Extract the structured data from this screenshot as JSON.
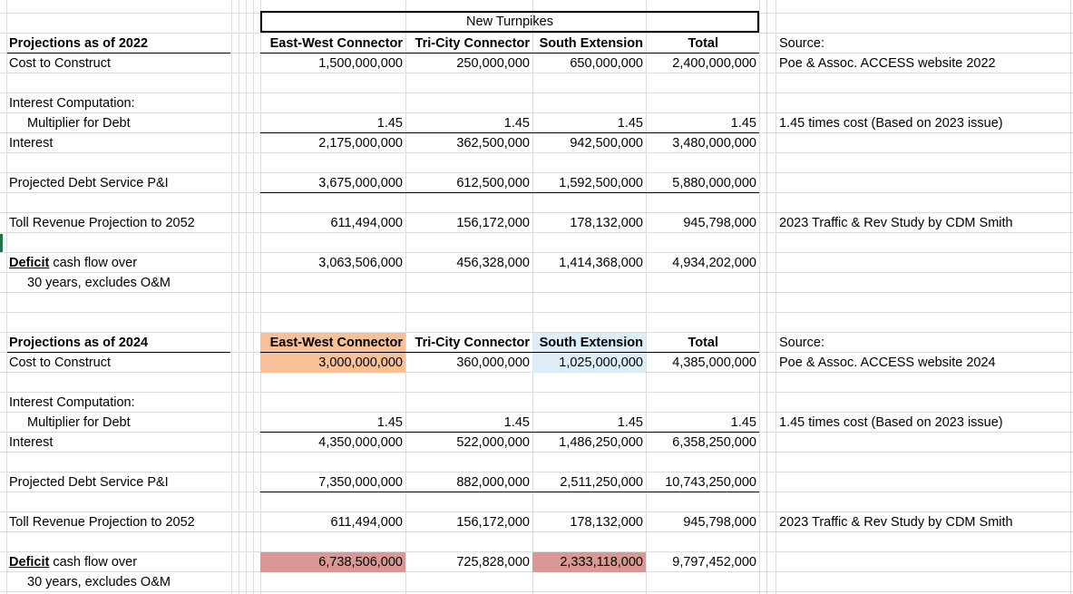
{
  "sheet": {
    "header_title": "New Turnpikes",
    "columns": [
      "East-West Connector",
      "Tri-City Connector",
      "South Extension",
      "Total"
    ],
    "sections": [
      {
        "heading": "Projections as of 2022",
        "cost_label": "Cost to Construct",
        "cost": [
          "1,500,000,000",
          "250,000,000",
          "650,000,000",
          "2,400,000,000"
        ],
        "source_label": "Source:",
        "source": "Poe & Assoc. ACCESS website 2022",
        "interest_computation_label": "Interest Computation:",
        "multiplier_label": "Multiplier for Debt",
        "multiplier": [
          "1.45",
          "1.45",
          "1.45",
          "1.45"
        ],
        "multiplier_note": "1.45 times cost (Based on 2023 issue)",
        "interest_label": "Interest",
        "interest": [
          "2,175,000,000",
          "362,500,000",
          "942,500,000",
          "3,480,000,000"
        ],
        "debt_service_label": "Projected Debt Service P&I",
        "debt_service": [
          "3,675,000,000",
          "612,500,000",
          "1,592,500,000",
          "5,880,000,000"
        ],
        "toll_label": "Toll Revenue Projection to 2052",
        "toll": [
          "611,494,000",
          "156,172,000",
          "178,132,000",
          "945,798,000"
        ],
        "toll_note": "2023 Traffic & Rev Study by CDM Smith",
        "deficit_word": "Deficit",
        "deficit_label_rest": " cash flow over",
        "deficit_label_line2": "30 years, excludes O&M",
        "deficit": [
          "3,063,506,000",
          "456,328,000",
          "1,414,368,000",
          "4,934,202,000"
        ]
      },
      {
        "heading": "Projections as of 2024",
        "cost_label": "Cost to Construct",
        "cost": [
          "3,000,000,000",
          "360,000,000",
          "1,025,000,000",
          "4,385,000,000"
        ],
        "source_label": "Source:",
        "source": "Poe & Assoc. ACCESS website 2024",
        "interest_computation_label": "Interest Computation:",
        "multiplier_label": "Multiplier for Debt",
        "multiplier": [
          "1.45",
          "1.45",
          "1.45",
          "1.45"
        ],
        "multiplier_note": "1.45 times cost (Based on 2023 issue)",
        "interest_label": "Interest",
        "interest": [
          "4,350,000,000",
          "522,000,000",
          "1,486,250,000",
          "6,358,250,000"
        ],
        "debt_service_label": "Projected Debt Service P&I",
        "debt_service": [
          "7,350,000,000",
          "882,000,000",
          "2,511,250,000",
          "10,743,250,000"
        ],
        "toll_label": "Toll Revenue Projection to 2052",
        "toll": [
          "611,494,000",
          "156,172,000",
          "178,132,000",
          "945,798,000"
        ],
        "toll_note": "2023 Traffic & Rev Study by CDM Smith",
        "deficit_word": "Deficit",
        "deficit_label_rest": " cash flow over",
        "deficit_label_line2": "30 years, excludes O&M",
        "deficit": [
          "6,738,506,000",
          "725,828,000",
          "2,333,118,000",
          "9,797,452,000"
        ]
      }
    ],
    "highlight_colors": {
      "orange": "#f8c097",
      "light_blue": "#dbeef8",
      "red": "#da9894"
    }
  }
}
